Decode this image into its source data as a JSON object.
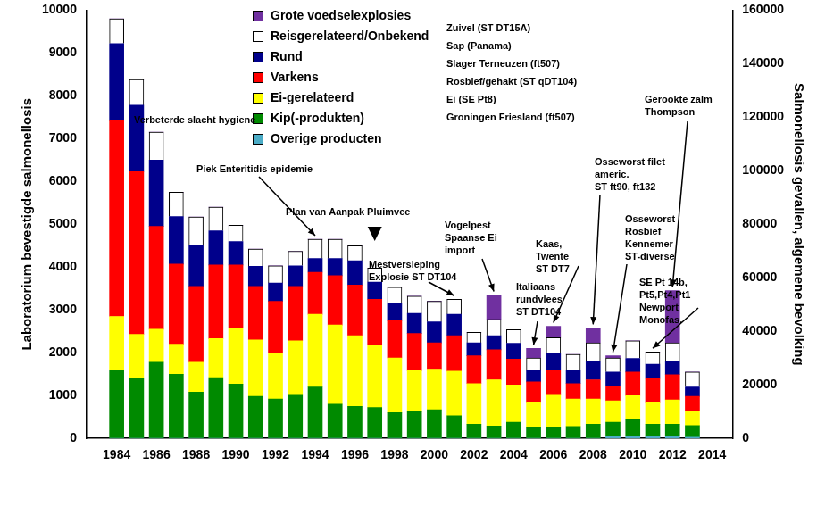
{
  "chart_data": {
    "type": "bar",
    "stacked": true,
    "grid": false,
    "legend": "top",
    "y_label": "Laboratorium bevestigde salmonellosis",
    "y2_label": "Salmonellosis gevallen, algemene bevolking",
    "x": [
      1984,
      1985,
      1986,
      1987,
      1988,
      1989,
      1990,
      1991,
      1992,
      1993,
      1994,
      1995,
      1996,
      1997,
      1998,
      1999,
      2000,
      2001,
      2002,
      2003,
      2004,
      2005,
      2006,
      2007,
      2008,
      2009,
      2010,
      2011,
      2012,
      2013
    ],
    "xlim": [
      1983.5,
      2014
    ],
    "xticks": [
      1984,
      1986,
      1988,
      1990,
      1992,
      1994,
      1996,
      1998,
      2000,
      2002,
      2004,
      2006,
      2008,
      2010,
      2012,
      2014
    ],
    "ylim": [
      0,
      10000
    ],
    "yticks": [
      0,
      1000,
      2000,
      3000,
      4000,
      5000,
      6000,
      7000,
      8000,
      9000,
      10000
    ],
    "y2lim": [
      0,
      160000
    ],
    "y2ticks": [
      0,
      20000,
      40000,
      60000,
      80000,
      100000,
      120000,
      140000,
      160000
    ],
    "series": [
      {
        "name": "Overige producten",
        "color": "#4bacc6",
        "values": [
          0,
          0,
          0,
          0,
          0,
          0,
          0,
          0,
          0,
          0,
          0,
          0,
          0,
          0,
          0,
          0,
          0,
          0,
          0,
          0,
          0,
          0,
          0,
          0,
          0,
          50,
          60,
          40,
          60,
          30
        ]
      },
      {
        "name": "Kip(-produkten)",
        "color": "#008a00",
        "values": [
          1600,
          1400,
          1780,
          1500,
          1080,
          1420,
          1270,
          980,
          920,
          1030,
          1200,
          800,
          750,
          720,
          600,
          620,
          670,
          530,
          330,
          290,
          380,
          270,
          270,
          280,
          330,
          330,
          390,
          290,
          270,
          270
        ]
      },
      {
        "name": "Ei-gerelateerd",
        "color": "#ffff00",
        "values": [
          1250,
          1030,
          770,
          700,
          700,
          910,
          1310,
          1320,
          1080,
          1250,
          1700,
          1850,
          1650,
          1460,
          1280,
          960,
          950,
          1040,
          950,
          1080,
          870,
          580,
          760,
          640,
          590,
          500,
          550,
          520,
          570,
          340
        ]
      },
      {
        "name": "Varkens",
        "color": "#ff0000",
        "values": [
          4570,
          3800,
          2400,
          1870,
          1770,
          1720,
          1470,
          1250,
          1200,
          1270,
          980,
          1150,
          1180,
          1070,
          870,
          870,
          610,
          830,
          650,
          700,
          600,
          470,
          570,
          360,
          450,
          340,
          550,
          550,
          590,
          340
        ]
      },
      {
        "name": "Rund",
        "color": "#00008b",
        "values": [
          1800,
          1550,
          1550,
          1110,
          950,
          800,
          550,
          470,
          430,
          480,
          320,
          400,
          570,
          400,
          400,
          470,
          490,
          500,
          300,
          330,
          370,
          260,
          380,
          320,
          430,
          330,
          320,
          330,
          310,
          220
        ]
      },
      {
        "name": "Reisgerelateerd/Onbekend",
        "color": "#ffffff",
        "values": [
          580,
          600,
          650,
          570,
          670,
          550,
          380,
          400,
          400,
          340,
          450,
          450,
          350,
          330,
          380,
          400,
          480,
          350,
          250,
          380,
          320,
          300,
          370,
          360,
          430,
          330,
          410,
          290,
          430,
          350
        ]
      },
      {
        "name": "Grote voedselexplosies",
        "color": "#7030a0",
        "values": [
          0,
          0,
          0,
          0,
          0,
          0,
          0,
          0,
          0,
          0,
          0,
          0,
          0,
          0,
          0,
          0,
          0,
          0,
          0,
          570,
          0,
          220,
          270,
          0,
          350,
          50,
          0,
          0,
          1220,
          0
        ]
      }
    ],
    "annotations": [
      [
        "Verbeterde slacht hygiene"
      ],
      [
        "Piek Enteritidis epidemie"
      ],
      [
        "Plan van Aanpak Pluimvee"
      ],
      [
        "Mestversleping",
        "Explosie ST DT104"
      ],
      [
        "Vogelpest",
        "Spaanse Ei",
        "import"
      ],
      [
        "Zuivel (ST DT15A)",
        "Sap (Panama)",
        "Slager Terneuzen (ft507)",
        "Rosbief/gehakt (ST qDT104)",
        "Ei (SE Pt8)",
        "Groningen Friesland (ft507)"
      ],
      [
        "Italiaans",
        "rundvlees",
        "ST DT104"
      ],
      [
        "Kaas,",
        "Twente",
        "ST DT7"
      ],
      [
        "Osseworst filet",
        "americ.",
        "ST ft90, ft132"
      ],
      [
        "Osseworst",
        "Rosbief",
        "Kennemer",
        "ST-diverse"
      ],
      [
        "SE Pt 14b,",
        "Pt5,Pt4,Pt1",
        "Newport",
        "Monofas."
      ],
      [
        "Gerookte zalm",
        "Thompson"
      ]
    ]
  }
}
